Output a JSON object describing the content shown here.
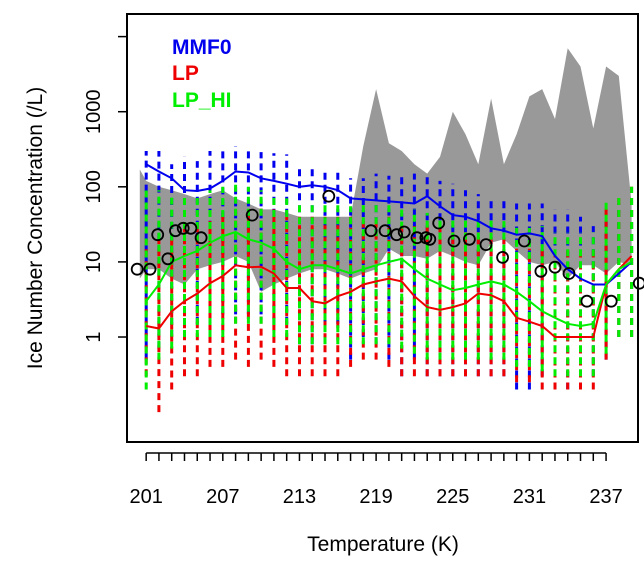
{
  "chart_data": {
    "type": "line",
    "xlabel": "Temperature (K)",
    "ylabel": "Ice Number Concentration (/L)",
    "y_scale": "log",
    "xlim": [
      199.5,
      239.5
    ],
    "ylim": [
      0.04,
      20000
    ],
    "x_ticks": [
      201,
      207,
      213,
      219,
      225,
      231,
      237
    ],
    "x_tick_labels": [
      "201",
      "207",
      "213",
      "219",
      "225",
      "231",
      "237"
    ],
    "y_ticks": [
      1,
      10,
      100,
      1000
    ],
    "y_tick_labels": [
      "1",
      "10",
      "100",
      "1000"
    ],
    "legend": {
      "position": "top-left"
    },
    "colors": {
      "MMF0": "#0000ee",
      "LP": "#ee0000",
      "LP_HI": "#00ee00",
      "obs_range": "#999999",
      "obs_points": "#000000"
    },
    "series": [
      {
        "name": "MMF0",
        "x": [
          201,
          202,
          203,
          204,
          205,
          206,
          207,
          208,
          209,
          210,
          211,
          212,
          213,
          214,
          215,
          216,
          217,
          218,
          219,
          220,
          221,
          222,
          223,
          224,
          225,
          226,
          227,
          228,
          229,
          230,
          231,
          232,
          233,
          234,
          235,
          236,
          237,
          238,
          239
        ],
        "values": [
          200,
          160,
          130,
          90,
          88,
          95,
          120,
          160,
          155,
          130,
          120,
          110,
          100,
          105,
          100,
          90,
          70,
          68,
          66,
          64,
          62,
          60,
          75,
          55,
          42,
          40,
          35,
          28,
          26,
          23,
          24,
          22,
          12,
          8,
          6,
          5,
          5,
          7,
          10
        ],
        "lower": [
          0.5,
          0.7,
          1,
          1,
          1.5,
          1.5,
          2,
          2,
          2,
          2,
          1.5,
          1.5,
          0.8,
          0.8,
          1.5,
          1.5,
          0.5,
          1,
          0.8,
          0.5,
          0.3,
          0.5,
          0.3,
          0.3,
          0.3,
          0.3,
          0.3,
          0.3,
          0.3,
          0.2,
          0.2,
          0.3,
          0.2,
          0.2,
          0.2,
          0.3,
          0.5,
          1,
          1
        ],
        "upper": [
          300,
          300,
          200,
          250,
          220,
          300,
          330,
          350,
          300,
          290,
          280,
          270,
          200,
          200,
          160,
          170,
          130,
          130,
          150,
          140,
          140,
          150,
          140,
          120,
          110,
          90,
          80,
          70,
          70,
          60,
          60,
          60,
          50,
          50,
          40,
          30,
          40,
          60,
          50
        ]
      },
      {
        "name": "LP",
        "x": [
          201,
          202,
          203,
          204,
          205,
          206,
          207,
          208,
          209,
          210,
          211,
          212,
          213,
          214,
          215,
          216,
          217,
          218,
          219,
          220,
          221,
          222,
          223,
          224,
          225,
          226,
          227,
          228,
          229,
          230,
          231,
          232,
          233,
          234,
          235,
          236,
          237,
          238,
          239
        ],
        "values": [
          1.4,
          1.3,
          2.2,
          3,
          3.8,
          5.2,
          6.5,
          9,
          8.5,
          8.6,
          7,
          4.5,
          4.5,
          3,
          2.8,
          3.5,
          4,
          5,
          5.5,
          6,
          5.5,
          3.5,
          2.5,
          2.3,
          2.5,
          2.8,
          3.8,
          3.6,
          3,
          1.8,
          1.6,
          1.4,
          1,
          1,
          1,
          1,
          5,
          8,
          12
        ],
        "lower": [
          0.3,
          0.1,
          0.2,
          0.3,
          0.3,
          0.4,
          0.4,
          0.5,
          0.4,
          0.5,
          0.4,
          0.3,
          0.3,
          0.3,
          0.3,
          0.3,
          0.4,
          0.5,
          0.5,
          0.4,
          0.3,
          0.3,
          0.3,
          0.3,
          0.3,
          0.3,
          0.3,
          0.3,
          0.3,
          0.25,
          0.25,
          0.2,
          0.2,
          0.2,
          0.2,
          0.2,
          0.5,
          1,
          1
        ],
        "upper": [
          20,
          20,
          20,
          30,
          30,
          35,
          40,
          50,
          50,
          60,
          50,
          40,
          40,
          40,
          40,
          40,
          40,
          40,
          40,
          40,
          35,
          30,
          30,
          30,
          25,
          25,
          25,
          25,
          20,
          15,
          15,
          15,
          15,
          15,
          15,
          15,
          60,
          80,
          100
        ]
      },
      {
        "name": "LP_HI",
        "x": [
          201,
          202,
          203,
          204,
          205,
          206,
          207,
          208,
          209,
          210,
          211,
          212,
          213,
          214,
          215,
          216,
          217,
          218,
          219,
          220,
          221,
          222,
          223,
          224,
          225,
          226,
          227,
          228,
          229,
          230,
          231,
          232,
          233,
          234,
          235,
          236,
          237,
          238,
          239
        ],
        "values": [
          3,
          5,
          10,
          12,
          14,
          18,
          22,
          25,
          20,
          18,
          15,
          10,
          8,
          9,
          9,
          8,
          7,
          8,
          9,
          10,
          11,
          8,
          6,
          5,
          4.2,
          4.5,
          5,
          5.5,
          5,
          4,
          3,
          2.2,
          1.8,
          1.5,
          1.4,
          1.5,
          5,
          8,
          10
        ],
        "lower": [
          0.2,
          0.5,
          0.7,
          1,
          1,
          1,
          1,
          1.5,
          1.5,
          1.5,
          1,
          1,
          0.8,
          0.8,
          0.8,
          0.8,
          0.8,
          0.8,
          0.8,
          0.8,
          0.7,
          0.6,
          0.5,
          0.5,
          0.5,
          0.5,
          0.5,
          0.5,
          0.5,
          0.4,
          0.4,
          0.35,
          0.3,
          0.3,
          0.3,
          0.3,
          0.6,
          1,
          1
        ],
        "upper": [
          100,
          90,
          80,
          80,
          80,
          90,
          100,
          110,
          100,
          90,
          80,
          70,
          60,
          60,
          60,
          60,
          55,
          60,
          60,
          60,
          55,
          50,
          45,
          40,
          40,
          40,
          40,
          40,
          35,
          30,
          30,
          30,
          25,
          25,
          25,
          25,
          70,
          80,
          100
        ]
      },
      {
        "name": "observations",
        "type": "scatter",
        "x": [
          200.3,
          201.3,
          201.9,
          202.7,
          203.3,
          203.9,
          204.5,
          205.3,
          209.3,
          215.3,
          218.6,
          219.7,
          220.6,
          221.2,
          222.2,
          222.9,
          223.2,
          223.9,
          225.1,
          226.3,
          227.6,
          228.9,
          230.6,
          231.9,
          233.0,
          234.1,
          235.5,
          237.4,
          239.6
        ],
        "values": [
          8,
          8,
          23,
          11,
          26,
          28,
          28,
          21,
          42,
          75,
          26,
          26,
          23,
          25,
          21,
          21,
          20,
          33,
          19,
          20,
          17,
          11.5,
          19,
          7.5,
          8.5,
          7,
          3,
          3,
          5.2
        ]
      }
    ],
    "obs_range": {
      "x": [
        200.5,
        201,
        202,
        203,
        204,
        205,
        206,
        207,
        208,
        209,
        210,
        211,
        212,
        213,
        214,
        215,
        216,
        217,
        218,
        219,
        220,
        221,
        222,
        223,
        224,
        225,
        226,
        227,
        228,
        229,
        230,
        231,
        232,
        233,
        234,
        235,
        236,
        237,
        238,
        239
      ],
      "lower": [
        6,
        8,
        8,
        6,
        5,
        8,
        9,
        10,
        12,
        10,
        4,
        5,
        6,
        7,
        8,
        8,
        7,
        6,
        7,
        8,
        15,
        12,
        12,
        11,
        14,
        12,
        10,
        9,
        18,
        20,
        14,
        10,
        9,
        10,
        6,
        9,
        9,
        7,
        10,
        9
      ],
      "upper": [
        170,
        120,
        100,
        90,
        80,
        70,
        80,
        90,
        70,
        60,
        50,
        50,
        45,
        40,
        40,
        40,
        40,
        40,
        350,
        2000,
        380,
        300,
        200,
        150,
        250,
        1000,
        500,
        200,
        1500,
        200,
        500,
        1600,
        2000,
        800,
        7000,
        4000,
        600,
        4000,
        3000,
        60
      ]
    }
  }
}
